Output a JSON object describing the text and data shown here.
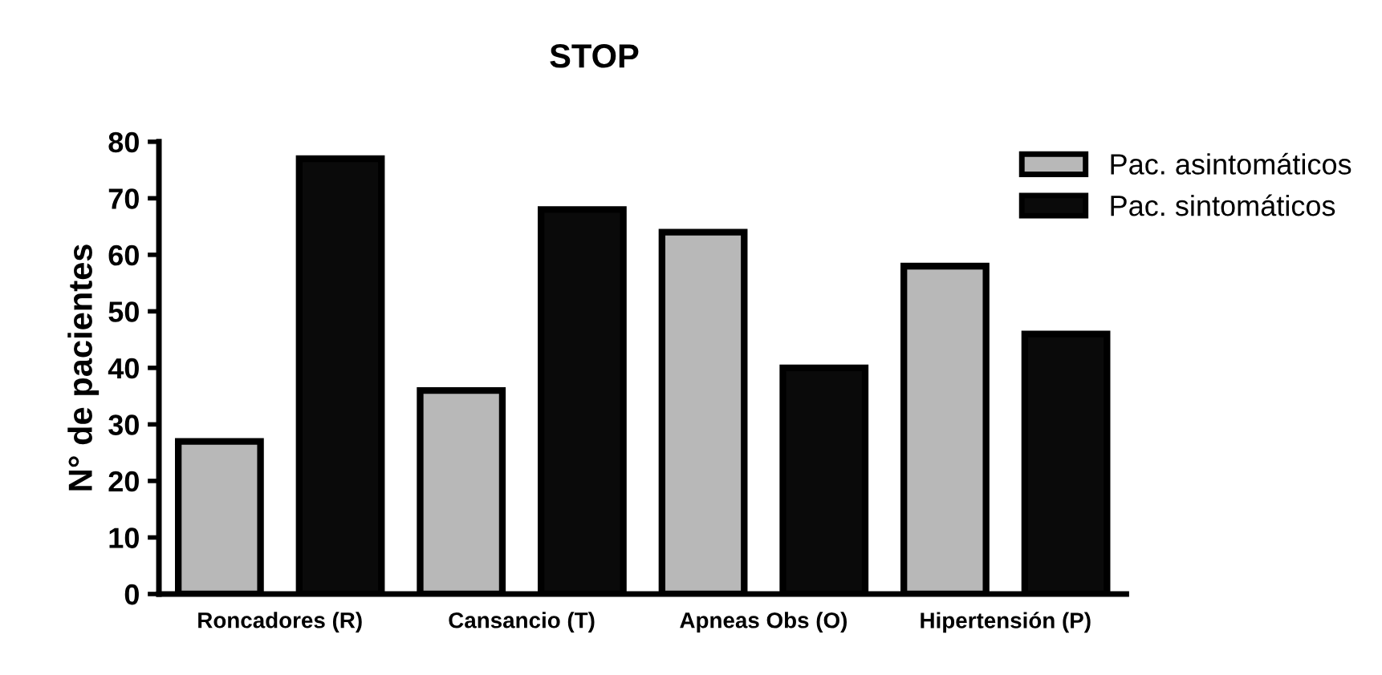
{
  "chart_data": {
    "type": "bar",
    "title": "STOP",
    "ylabel": "N° de pacientes",
    "categories": [
      "Roncadores (R)",
      "Cansancio (T)",
      "Apneas Obs (O)",
      "Hipertensión (P)"
    ],
    "series": [
      {
        "name": "Pac. asintomáticos",
        "color": "#b8b8b8",
        "values": [
          27,
          36,
          64,
          58
        ]
      },
      {
        "name": "Pac. sintomáticos",
        "color": "#0a0a0a",
        "values": [
          77,
          68,
          40,
          46
        ]
      }
    ],
    "ylim": [
      0,
      80
    ],
    "yticks": [
      0,
      10,
      20,
      30,
      40,
      50,
      60,
      70,
      80
    ],
    "grid": false,
    "legend": "top right"
  }
}
